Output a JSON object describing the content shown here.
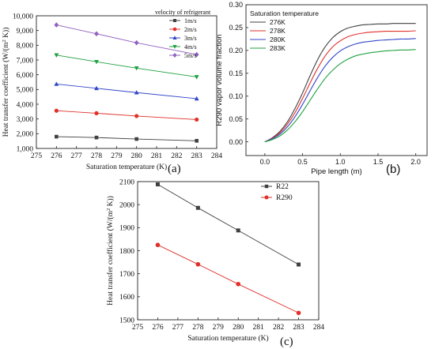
{
  "chart_data": [
    {
      "panel_label": "(a)",
      "type": "line",
      "title": "",
      "xlabel": "Saturation temperature (K)",
      "ylabel": "Heat transfer coefficient (W/(m² K))",
      "xlim": [
        275,
        284
      ],
      "ylim": [
        1000,
        10000
      ],
      "xticks": [
        275,
        276,
        277,
        278,
        279,
        280,
        281,
        282,
        283,
        284
      ],
      "yticks": [
        1000,
        2000,
        3000,
        4000,
        5000,
        6000,
        7000,
        8000,
        9000,
        10000
      ],
      "ytick_labels": [
        "1,000",
        "2,000",
        "3,000",
        "4,000",
        "5,000",
        "6,000",
        "7,000",
        "8,000",
        "9,000",
        "10,000"
      ],
      "legend_title": "velocity of refrigerant",
      "legend_position": "top-right",
      "x": [
        276,
        278,
        280,
        283
      ],
      "series": [
        {
          "name": "1m/s",
          "values": [
            1800,
            1740,
            1640,
            1520
          ],
          "color": "#404040",
          "marker": "square"
        },
        {
          "name": "2m/s",
          "values": [
            3560,
            3390,
            3200,
            2960
          ],
          "color": "#e0302a",
          "marker": "circle"
        },
        {
          "name": "3m/s",
          "values": [
            5370,
            5080,
            4790,
            4380
          ],
          "color": "#3246c8",
          "marker": "triangle-up"
        },
        {
          "name": "4m/s",
          "values": [
            7330,
            6880,
            6450,
            5850
          ],
          "color": "#20a040",
          "marker": "triangle-down"
        },
        {
          "name": "5m/s",
          "values": [
            9380,
            8780,
            8170,
            7370
          ],
          "color": "#9060c0",
          "marker": "diamond"
        }
      ]
    },
    {
      "panel_label": "(b)",
      "type": "line",
      "title": "",
      "xlabel": "Pipe length (m)",
      "ylabel": "R290 vapor volume fraction",
      "xlim": [
        -0.25,
        2.15
      ],
      "ylim": [
        -0.03,
        0.3
      ],
      "xticks": [
        0.0,
        0.5,
        1.0,
        1.5,
        2.0
      ],
      "xtick_labels": [
        "0.0",
        "0.5",
        "1.0",
        "1.5",
        "2.0"
      ],
      "yticks": [
        0.0,
        0.05,
        0.1,
        0.15,
        0.2,
        0.25,
        0.3
      ],
      "ytick_labels": [
        "0.00",
        "0.05",
        "0.10",
        "0.15",
        "0.20",
        "0.25",
        "0.30"
      ],
      "legend_title": "Saturation temperature",
      "legend_position": "top-left",
      "x": [
        0.0,
        0.1,
        0.2,
        0.3,
        0.4,
        0.5,
        0.6,
        0.7,
        0.8,
        0.9,
        1.0,
        1.1,
        1.2,
        1.3,
        1.4,
        1.5,
        1.6,
        1.7,
        1.8,
        1.9,
        2.0
      ],
      "series": [
        {
          "name": "276K",
          "color": "#404040",
          "values": [
            0.0,
            0.009,
            0.023,
            0.044,
            0.073,
            0.107,
            0.145,
            0.18,
            0.208,
            0.228,
            0.241,
            0.249,
            0.253,
            0.256,
            0.257,
            0.258,
            0.258,
            0.259,
            0.259,
            0.259,
            0.259
          ]
        },
        {
          "name": "278K",
          "color": "#e0302a",
          "values": [
            0.0,
            0.008,
            0.02,
            0.039,
            0.064,
            0.095,
            0.129,
            0.161,
            0.188,
            0.208,
            0.221,
            0.23,
            0.235,
            0.238,
            0.24,
            0.241,
            0.242,
            0.242,
            0.242,
            0.242,
            0.243
          ]
        },
        {
          "name": "280K",
          "color": "#3246c8",
          "values": [
            0.0,
            0.007,
            0.017,
            0.033,
            0.055,
            0.082,
            0.112,
            0.141,
            0.166,
            0.185,
            0.199,
            0.208,
            0.214,
            0.218,
            0.22,
            0.222,
            0.223,
            0.224,
            0.225,
            0.225,
            0.226
          ]
        },
        {
          "name": "283K",
          "color": "#20a040",
          "values": [
            0.0,
            0.005,
            0.013,
            0.026,
            0.044,
            0.066,
            0.091,
            0.116,
            0.139,
            0.157,
            0.171,
            0.181,
            0.188,
            0.192,
            0.195,
            0.197,
            0.199,
            0.2,
            0.201,
            0.201,
            0.202
          ]
        }
      ]
    },
    {
      "panel_label": "(c)",
      "type": "line",
      "title": "",
      "xlabel": "Saturation temperature (K)",
      "ylabel": "Heat transfer coefficient (W/(m² K))",
      "xlim": [
        275,
        284
      ],
      "ylim": [
        1500,
        2100
      ],
      "xticks": [
        275,
        276,
        277,
        278,
        279,
        280,
        281,
        282,
        283,
        284
      ],
      "yticks": [
        1500,
        1600,
        1700,
        1800,
        1900,
        2000,
        2100
      ],
      "legend_position": "top-right",
      "x": [
        276,
        278,
        280,
        283
      ],
      "series": [
        {
          "name": "R22",
          "values": [
            2088,
            1986,
            1888,
            1740
          ],
          "color": "#404040",
          "marker": "square"
        },
        {
          "name": "R290",
          "values": [
            1825,
            1741,
            1655,
            1530
          ],
          "color": "#e0302a",
          "marker": "circle"
        }
      ]
    }
  ]
}
